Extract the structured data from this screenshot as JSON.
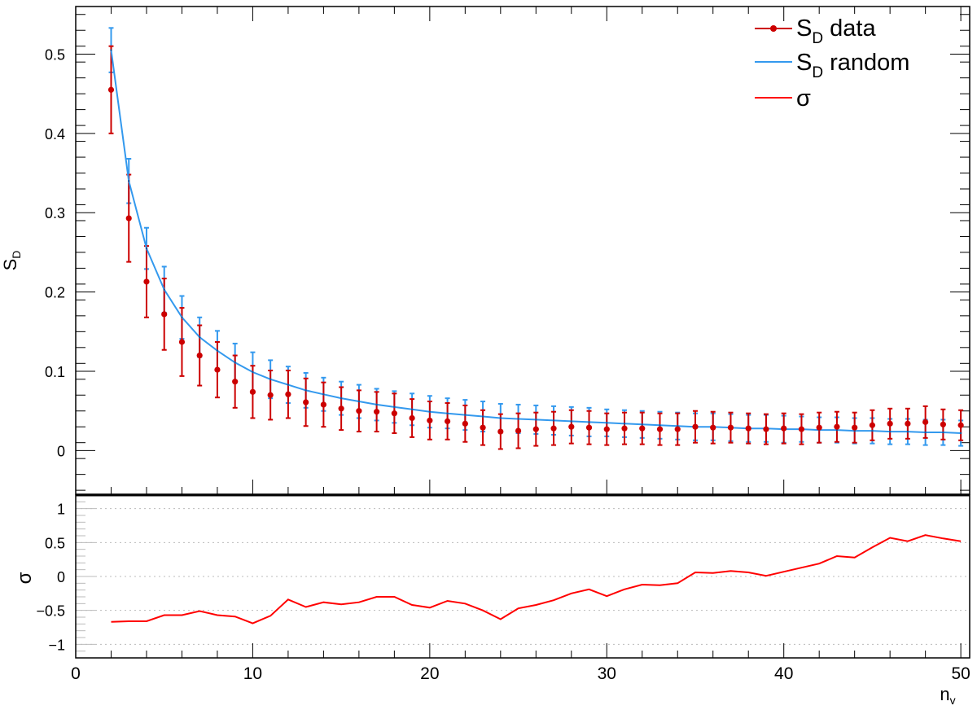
{
  "chart_data": [
    {
      "type": "scatter",
      "panel": "top",
      "xlabel": "",
      "ylabel": "S",
      "ylabel_sub": "D",
      "xlim": [
        0,
        50.5
      ],
      "ylim": [
        -0.055,
        0.56
      ],
      "yticks": [
        0,
        0.1,
        0.2,
        0.3,
        0.4,
        0.5
      ],
      "ytick_labels": [
        "0",
        "0.1",
        "0.2",
        "0.3",
        "0.4",
        "0.5"
      ],
      "legend_position": "top-right",
      "x": [
        2,
        3,
        4,
        5,
        6,
        7,
        8,
        9,
        10,
        11,
        12,
        13,
        14,
        15,
        16,
        17,
        18,
        19,
        20,
        21,
        22,
        23,
        24,
        25,
        26,
        27,
        28,
        29,
        30,
        31,
        32,
        33,
        34,
        35,
        36,
        37,
        38,
        39,
        40,
        41,
        42,
        43,
        44,
        45,
        46,
        47,
        48,
        49,
        50
      ],
      "series": [
        {
          "name": "S",
          "name_sub": "D",
          "name_suffix": " data",
          "style": "markers-errorbars",
          "color": "#cc0000",
          "values": [
            0.455,
            0.293,
            0.213,
            0.172,
            0.137,
            0.12,
            0.102,
            0.087,
            0.074,
            0.07,
            0.071,
            0.061,
            0.058,
            0.053,
            0.05,
            0.049,
            0.047,
            0.041,
            0.038,
            0.037,
            0.034,
            0.029,
            0.024,
            0.025,
            0.027,
            0.028,
            0.03,
            0.029,
            0.027,
            0.028,
            0.028,
            0.027,
            0.027,
            0.03,
            0.029,
            0.029,
            0.028,
            0.027,
            0.028,
            0.027,
            0.029,
            0.03,
            0.029,
            0.032,
            0.034,
            0.034,
            0.036,
            0.033,
            0.032
          ],
          "errors": [
            0.055,
            0.055,
            0.045,
            0.045,
            0.043,
            0.038,
            0.035,
            0.033,
            0.033,
            0.031,
            0.03,
            0.03,
            0.028,
            0.027,
            0.026,
            0.025,
            0.025,
            0.024,
            0.024,
            0.023,
            0.023,
            0.022,
            0.022,
            0.022,
            0.021,
            0.021,
            0.021,
            0.021,
            0.02,
            0.02,
            0.02,
            0.02,
            0.02,
            0.02,
            0.02,
            0.019,
            0.019,
            0.019,
            0.019,
            0.019,
            0.019,
            0.019,
            0.019,
            0.019,
            0.019,
            0.019,
            0.02,
            0.019,
            0.019
          ]
        },
        {
          "name": "S",
          "name_sub": "D",
          "name_suffix": " random",
          "style": "line-errorbars",
          "color": "#3399ee",
          "values": [
            0.505,
            0.34,
            0.255,
            0.203,
            0.168,
            0.143,
            0.126,
            0.111,
            0.099,
            0.09,
            0.083,
            0.076,
            0.071,
            0.066,
            0.062,
            0.058,
            0.055,
            0.052,
            0.049,
            0.047,
            0.045,
            0.043,
            0.041,
            0.04,
            0.039,
            0.038,
            0.037,
            0.036,
            0.035,
            0.034,
            0.033,
            0.032,
            0.031,
            0.03,
            0.03,
            0.029,
            0.028,
            0.028,
            0.027,
            0.027,
            0.026,
            0.026,
            0.025,
            0.025,
            0.024,
            0.024,
            0.023,
            0.023,
            0.022
          ],
          "errors": [
            0.028,
            0.028,
            0.026,
            0.029,
            0.027,
            0.025,
            0.025,
            0.024,
            0.025,
            0.024,
            0.023,
            0.022,
            0.021,
            0.021,
            0.021,
            0.02,
            0.02,
            0.02,
            0.02,
            0.019,
            0.019,
            0.019,
            0.018,
            0.018,
            0.018,
            0.018,
            0.018,
            0.018,
            0.017,
            0.017,
            0.017,
            0.017,
            0.017,
            0.017,
            0.017,
            0.017,
            0.017,
            0.017,
            0.017,
            0.016,
            0.016,
            0.016,
            0.016,
            0.016,
            0.016,
            0.016,
            0.016,
            0.016,
            0.016
          ]
        },
        {
          "name": "σ",
          "style": "line",
          "color": "#ff0000"
        }
      ]
    },
    {
      "type": "line",
      "panel": "bottom",
      "xlabel": "n",
      "xlabel_sub": "v",
      "ylabel": "σ",
      "xlim": [
        0,
        50.5
      ],
      "ylim": [
        -1.2,
        1.2
      ],
      "xticks": [
        0,
        10,
        20,
        30,
        40,
        50
      ],
      "xtick_labels": [
        "0",
        "10",
        "20",
        "30",
        "40",
        "50"
      ],
      "yticks": [
        -1,
        -0.5,
        0,
        0.5,
        1
      ],
      "ytick_labels": [
        "−1",
        "−0.5",
        "0",
        "0.5",
        "1"
      ],
      "grid": "horizontal dotted",
      "x": [
        2,
        3,
        4,
        5,
        6,
        7,
        8,
        9,
        10,
        11,
        12,
        13,
        14,
        15,
        16,
        17,
        18,
        19,
        20,
        21,
        22,
        23,
        24,
        25,
        26,
        27,
        28,
        29,
        30,
        31,
        32,
        33,
        34,
        35,
        36,
        37,
        38,
        39,
        40,
        41,
        42,
        43,
        44,
        45,
        46,
        47,
        48,
        49,
        50
      ],
      "series": [
        {
          "name": "σ",
          "color": "#ff0000",
          "values": [
            -0.67,
            -0.66,
            -0.66,
            -0.57,
            -0.57,
            -0.51,
            -0.57,
            -0.59,
            -0.69,
            -0.58,
            -0.34,
            -0.45,
            -0.38,
            -0.41,
            -0.38,
            -0.3,
            -0.3,
            -0.42,
            -0.46,
            -0.36,
            -0.4,
            -0.5,
            -0.63,
            -0.47,
            -0.42,
            -0.35,
            -0.25,
            -0.19,
            -0.29,
            -0.19,
            -0.12,
            -0.13,
            -0.1,
            0.06,
            0.05,
            0.08,
            0.06,
            0.01,
            0.07,
            0.13,
            0.19,
            0.3,
            0.28,
            0.43,
            0.57,
            0.52,
            0.61,
            0.56,
            0.52
          ]
        }
      ]
    }
  ]
}
